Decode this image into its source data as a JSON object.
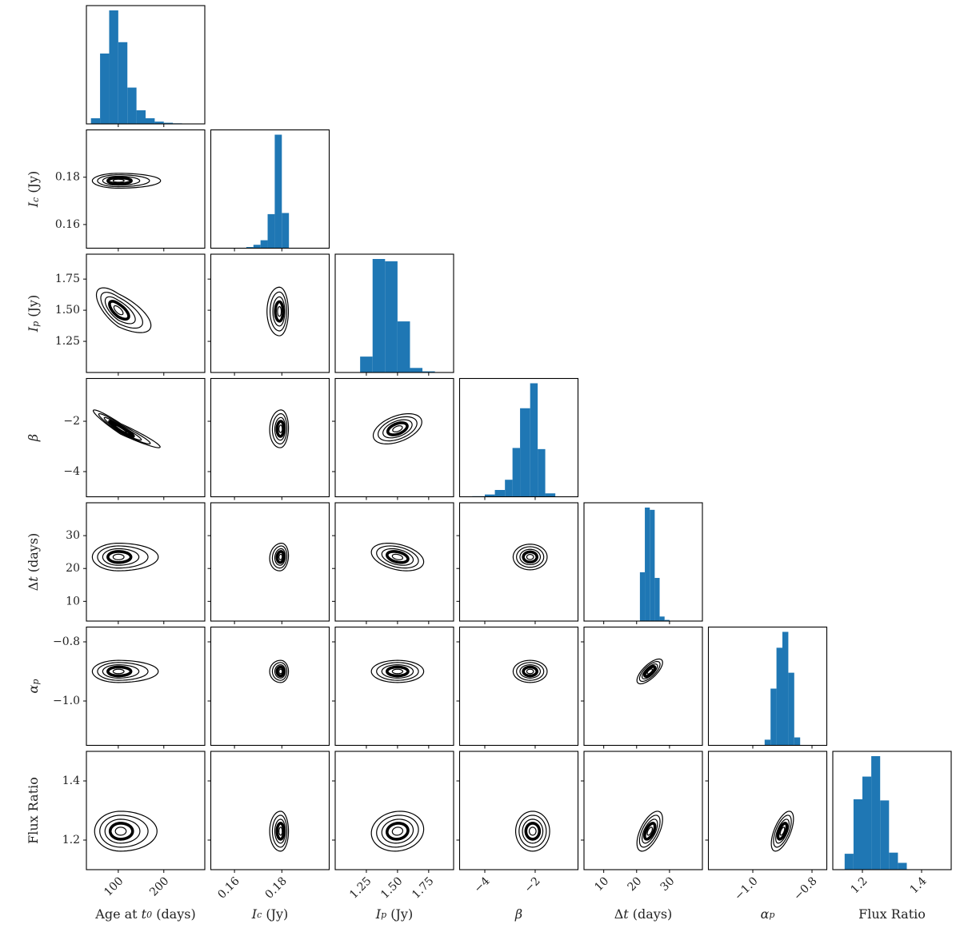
{
  "chart_data": {
    "type": "corner",
    "params": [
      {
        "key": "age",
        "label": "Age at t0 (days)",
        "ylabel": "",
        "range": [
          30,
          290
        ],
        "ticks": [
          100,
          200
        ],
        "tick_labels": [
          "100",
          "200"
        ]
      },
      {
        "key": "ic",
        "label": "Ic (Jy)",
        "ylabel": "Ic (Jy)",
        "range": [
          0.15,
          0.2
        ],
        "ticks": [
          0.16,
          0.18
        ],
        "tick_labels": [
          "0.16",
          "0.18"
        ]
      },
      {
        "key": "ip",
        "label": "Ip (Jy)",
        "ylabel": "Ip (Jy)",
        "range": [
          1.0,
          1.95
        ],
        "ticks": [
          1.25,
          1.5,
          1.75
        ],
        "tick_labels": [
          "1.25",
          "1.50",
          "1.75"
        ]
      },
      {
        "key": "beta",
        "label": "β",
        "ylabel": "β",
        "range": [
          -5.0,
          -0.3
        ],
        "ticks": [
          -4,
          -2
        ],
        "tick_labels": [
          "−4",
          "−2"
        ]
      },
      {
        "key": "dt",
        "label": "Δt (days)",
        "ylabel": "Δt (days)",
        "range": [
          4,
          40
        ],
        "ticks": [
          10,
          20,
          30
        ],
        "tick_labels": [
          "10",
          "20",
          "30"
        ]
      },
      {
        "key": "alpha",
        "label": "αp",
        "ylabel": "αp",
        "range": [
          -1.15,
          -0.75
        ],
        "ticks": [
          -1.0,
          -0.8
        ],
        "tick_labels": [
          "−1.0",
          "−0.8"
        ]
      },
      {
        "key": "flux",
        "label": "Flux Ratio",
        "ylabel": "Flux Ratio",
        "range": [
          1.1,
          1.5
        ],
        "ticks": [
          1.2,
          1.4
        ],
        "tick_labels": [
          "1.2",
          "1.4"
        ]
      }
    ],
    "histograms": [
      {
        "param": "age",
        "edges": [
          40,
          60,
          80,
          100,
          120,
          140,
          160,
          180,
          200,
          220,
          240,
          260
        ],
        "counts": [
          5,
          62,
          100,
          72,
          32,
          12,
          5,
          2,
          1,
          0.5,
          0.3
        ]
      },
      {
        "param": "ic",
        "edges": [
          0.165,
          0.168,
          0.171,
          0.174,
          0.177,
          0.18,
          0.183,
          0.186
        ],
        "counts": [
          1,
          3,
          7,
          30,
          100,
          31,
          0
        ]
      },
      {
        "param": "ip",
        "edges": [
          1.2,
          1.3,
          1.4,
          1.5,
          1.6,
          1.7,
          1.8
        ],
        "counts": [
          14,
          100,
          98,
          45,
          4,
          1
        ]
      },
      {
        "param": "beta",
        "edges": [
          -4.5,
          -4.0,
          -3.6,
          -3.2,
          -2.9,
          -2.6,
          -2.2,
          -1.9,
          -1.6,
          -1.2
        ],
        "counts": [
          0.5,
          2,
          6,
          15,
          43,
          78,
          100,
          42,
          3
        ]
      },
      {
        "param": "dt",
        "edges": [
          21,
          22.5,
          24,
          25.5,
          27,
          28.5,
          30
        ],
        "counts": [
          43,
          100,
          98,
          38,
          4,
          1
        ]
      },
      {
        "param": "alpha",
        "edges": [
          -0.96,
          -0.94,
          -0.92,
          -0.9,
          -0.88,
          -0.86,
          -0.84
        ],
        "counts": [
          5,
          50,
          86,
          100,
          64,
          7
        ]
      },
      {
        "param": "flux",
        "edges": [
          1.14,
          1.17,
          1.2,
          1.23,
          1.26,
          1.29,
          1.32,
          1.35
        ],
        "counts": [
          14,
          62,
          82,
          100,
          61,
          15,
          6
        ]
      }
    ],
    "joint": [
      {
        "x": "age",
        "y": "ic",
        "cx": 100,
        "cy": 0.1785,
        "sx": 38,
        "sy": 0.0021,
        "rho": 0.0,
        "xskew": 0.7
      },
      {
        "x": "age",
        "y": "ip",
        "cx": 100,
        "cy": 1.5,
        "sx": 32,
        "sy": 0.12,
        "rho": -0.68,
        "xskew": 0.55
      },
      {
        "x": "ic",
        "y": "ip",
        "cx": 0.179,
        "cy": 1.49,
        "sx": 0.0025,
        "sy": 0.13,
        "rho": 0.0,
        "xskew": -0.45
      },
      {
        "x": "age",
        "y": "beta",
        "cx": 105,
        "cy": -2.3,
        "sx": 40,
        "sy": 0.5,
        "rho": -0.96,
        "xskew": 0.5
      },
      {
        "x": "ic",
        "y": "beta",
        "cx": 0.1795,
        "cy": -2.3,
        "sx": 0.0022,
        "sy": 0.5,
        "rho": 0.05,
        "xskew": -0.45
      },
      {
        "x": "ip",
        "y": "beta",
        "cx": 1.5,
        "cy": -2.3,
        "sx": 0.13,
        "sy": 0.4,
        "rho": 0.45,
        "xskew": 0.0
      },
      {
        "x": "age",
        "y": "dt",
        "cx": 100,
        "cy": 23.5,
        "sx": 38,
        "sy": 2.8,
        "rho": 0.0,
        "xskew": 0.6
      },
      {
        "x": "ic",
        "y": "dt",
        "cx": 0.1795,
        "cy": 23.5,
        "sx": 0.0022,
        "sy": 2.8,
        "rho": 0.1,
        "xskew": -0.45
      },
      {
        "x": "ip",
        "y": "dt",
        "cx": 1.5,
        "cy": 23.5,
        "sx": 0.14,
        "sy": 2.8,
        "rho": -0.35,
        "xskew": 0.0
      },
      {
        "x": "beta",
        "y": "dt",
        "cx": -2.2,
        "cy": 23.5,
        "sx": 0.45,
        "sy": 2.6,
        "rho": 0.0,
        "xskew": 0.0
      },
      {
        "x": "age",
        "y": "alpha",
        "cx": 100,
        "cy": -0.9,
        "sx": 38,
        "sy": 0.025,
        "rho": 0.0,
        "xskew": 0.6
      },
      {
        "x": "ic",
        "y": "alpha",
        "cx": 0.1795,
        "cy": -0.9,
        "sx": 0.0022,
        "sy": 0.025,
        "rho": 0.0,
        "xskew": -0.45
      },
      {
        "x": "ip",
        "y": "alpha",
        "cx": 1.5,
        "cy": -0.9,
        "sx": 0.14,
        "sy": 0.025,
        "rho": 0.0,
        "xskew": 0.0
      },
      {
        "x": "beta",
        "y": "alpha",
        "cx": -2.2,
        "cy": -0.9,
        "sx": 0.45,
        "sy": 0.025,
        "rho": 0.0,
        "xskew": 0.0
      },
      {
        "x": "dt",
        "y": "alpha",
        "cx": 24,
        "cy": -0.9,
        "sx": 2.6,
        "sy": 0.028,
        "rho": 0.72,
        "xskew": 0.0
      },
      {
        "x": "age",
        "y": "flux",
        "cx": 105,
        "cy": 1.23,
        "sx": 38,
        "sy": 0.045,
        "rho": 0.0,
        "xskew": 0.45
      },
      {
        "x": "ic",
        "y": "flux",
        "cx": 0.1795,
        "cy": 1.23,
        "sx": 0.0022,
        "sy": 0.045,
        "rho": 0.0,
        "xskew": -0.45
      },
      {
        "x": "ip",
        "y": "flux",
        "cx": 1.5,
        "cy": 1.23,
        "sx": 0.14,
        "sy": 0.045,
        "rho": 0.1,
        "xskew": 0.0
      },
      {
        "x": "beta",
        "y": "flux",
        "cx": -2.1,
        "cy": 1.23,
        "sx": 0.45,
        "sy": 0.045,
        "rho": 0.0,
        "xskew": 0.0
      },
      {
        "x": "dt",
        "y": "flux",
        "cx": 24,
        "cy": 1.23,
        "sx": 2.6,
        "sy": 0.045,
        "rho": 0.6,
        "xskew": 0.0
      },
      {
        "x": "alpha",
        "y": "flux",
        "cx": -0.9,
        "cy": 1.23,
        "sx": 0.025,
        "sy": 0.045,
        "rho": 0.62,
        "xskew": 0.0
      }
    ],
    "contour_levels": [
      0.3,
      0.6,
      0.9,
      1.2,
      1.5
    ],
    "contour_level_bold": 0.6,
    "colors": {
      "hist": "#1f77b4",
      "contour": "#000000",
      "axes": "#000000"
    },
    "grid": false,
    "legend": "none"
  }
}
